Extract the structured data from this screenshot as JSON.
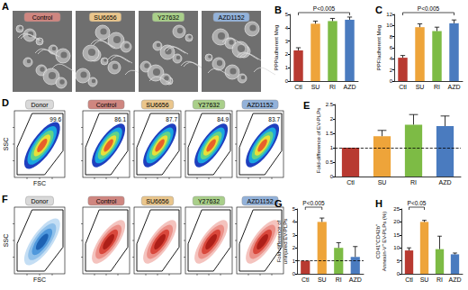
{
  "chart_data": [
    {
      "type": "bar",
      "title": "B",
      "categories": [
        "Ctl",
        "SU",
        "RI",
        "AZD"
      ],
      "values": [
        2.3,
        4.3,
        4.5,
        4.6
      ],
      "errors": [
        0.2,
        0.2,
        0.2,
        0.2
      ],
      "colors": [
        "#b83a31",
        "#eea43a",
        "#7dbb45",
        "#4a7bbf"
      ],
      "y_label": "PPP/adherent Meg",
      "ylim": [
        0,
        5
      ],
      "yticks": [
        0,
        1,
        2,
        3,
        4,
        5
      ],
      "annotations": [
        {
          "text": "P<0.005",
          "from": "Ctl",
          "to": "AZD"
        }
      ]
    },
    {
      "type": "bar",
      "title": "C",
      "categories": [
        "Ctl",
        "SU",
        "RI",
        "AZD"
      ],
      "values": [
        4.2,
        9.7,
        9.0,
        10.4
      ],
      "errors": [
        0.4,
        0.6,
        0.7,
        0.6
      ],
      "colors": [
        "#b83a31",
        "#eea43a",
        "#7dbb45",
        "#4a7bbf"
      ],
      "y_label": "PPF/adherent Meg",
      "ylim": [
        0,
        12
      ],
      "yticks": [
        0,
        2,
        4,
        6,
        8,
        10,
        12
      ],
      "annotations": [
        {
          "text": "P<0.005",
          "from": "Ctl",
          "to": "AZD"
        }
      ]
    },
    {
      "type": "bar",
      "title": "E",
      "categories": [
        "Ctl",
        "SU",
        "RI",
        "AZD"
      ],
      "values": [
        1,
        1.4,
        1.8,
        1.75
      ],
      "errors": [
        0,
        0.2,
        0.35,
        0.35
      ],
      "colors": [
        "#b83a31",
        "#eea43a",
        "#7dbb45",
        "#4a7bbf"
      ],
      "y_label": "Fold-difference of EV-PLPs",
      "ylim": [
        0,
        2.5
      ],
      "yticks": [
        0,
        0.5,
        1,
        1.5,
        2,
        2.5
      ],
      "reference_line": 1
    },
    {
      "type": "bar",
      "title": "G",
      "categories": [
        "Ctl",
        "SU",
        "RI",
        "AZD"
      ],
      "values": [
        1,
        4,
        2,
        1.3
      ],
      "errors": [
        0,
        0.3,
        0.4,
        0.8
      ],
      "colors": [
        "#b83a31",
        "#eea43a",
        "#7dbb45",
        "#4a7bbf"
      ],
      "y_label": "Fold-difference of\nuninjured EV-PLPs",
      "ylim": [
        0,
        5
      ],
      "yticks": [
        0,
        1,
        2,
        3,
        4,
        5
      ],
      "reference_line": 1,
      "annotations": [
        {
          "text": "P<0.005",
          "from": "Ctl",
          "to": "SU"
        }
      ]
    },
    {
      "type": "bar",
      "title": "H",
      "categories": [
        "Ctl",
        "SU",
        "RI",
        "AZD"
      ],
      "values": [
        9,
        20,
        9.5,
        7.5
      ],
      "errors": [
        1,
        0.6,
        5,
        0.5
      ],
      "colors": [
        "#b83a31",
        "#eea43a",
        "#7dbb45",
        "#4a7bbf"
      ],
      "y_label": "CD41⁺CD42b⁺\nAnnexin-V⁺ EV-PLPs (%)",
      "ylim": [
        0,
        25
      ],
      "yticks": [
        0,
        5,
        10,
        15,
        20,
        25
      ],
      "annotations": [
        {
          "text": "P<0.05",
          "from": "Ctl",
          "to": "SU"
        }
      ]
    }
  ],
  "panel_A": {
    "label": "A",
    "images": [
      "Control",
      "SU6656",
      "Y27632",
      "AZD1152"
    ],
    "colors": [
      "#cf8680",
      "#eac68c",
      "#a9cf8a",
      "#93b2da"
    ]
  },
  "panel_D": {
    "label": "D",
    "x_label": "FSC",
    "y_label": "SSC",
    "plots": [
      {
        "name": "Donor",
        "gate_percent": 99.6
      },
      {
        "name": "Control",
        "gate_percent": 86.1
      },
      {
        "name": "SU6656",
        "gate_percent": 87.7
      },
      {
        "name": "Y27632",
        "gate_percent": 84.9
      },
      {
        "name": "AZD1152",
        "gate_percent": 83.7
      }
    ],
    "colors": [
      "#d9d9d9",
      "#cf8680",
      "#eac68c",
      "#a9cf8a",
      "#93b2da"
    ]
  },
  "panel_F": {
    "label": "F",
    "x_label": "FSC",
    "y_label": "SSC",
    "plots": [
      "Donor",
      "Control",
      "SU6656",
      "Y27632",
      "AZD1152"
    ],
    "colors": [
      "#d9d9d9",
      "#cf8680",
      "#eac68c",
      "#a9cf8a",
      "#93b2da"
    ]
  }
}
